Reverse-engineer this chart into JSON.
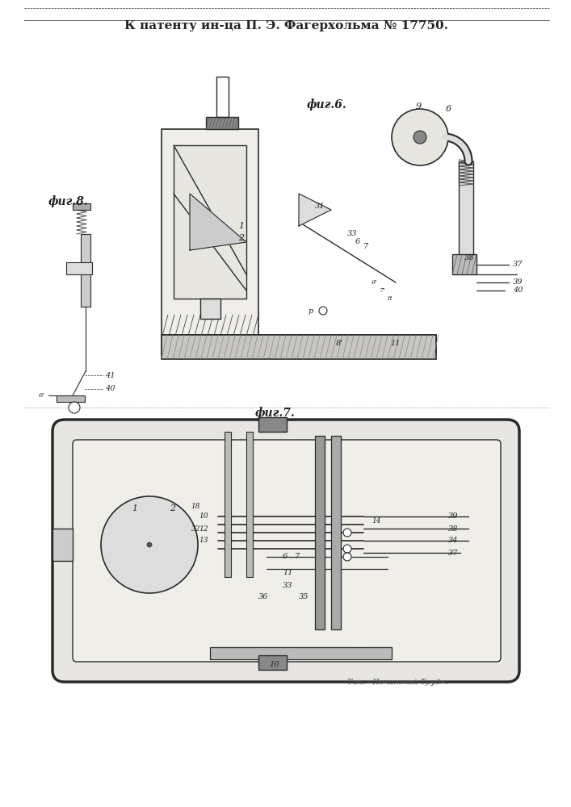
{
  "title_text": "К патенту ин-ца П. Э. Фагерхольма № 17750.",
  "fig6_label": "фиг.6.",
  "fig7_label": "фиг.7.",
  "fig8_label": "фиг.8.",
  "footer_text": "Тип. «Печатный Труд».",
  "bg_color": "#ffffff",
  "line_color": "#2a2a2a",
  "hatch_color": "#2a2a2a",
  "label_color": "#222222"
}
